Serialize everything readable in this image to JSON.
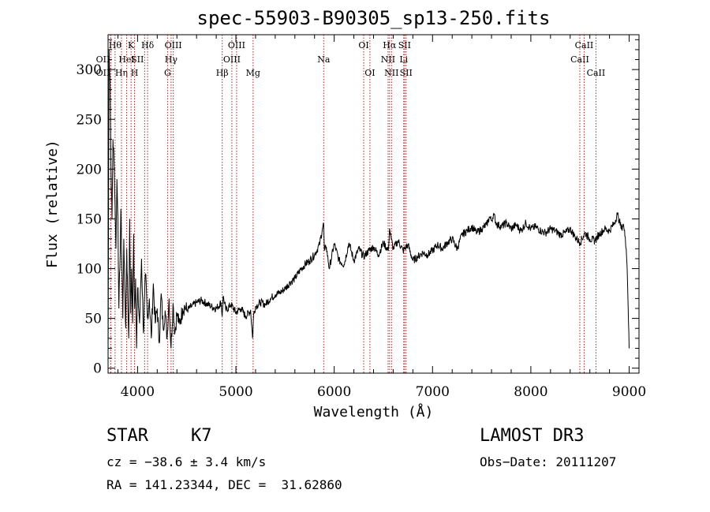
{
  "chart_data": {
    "type": "line",
    "title": "spec-55903-B90305_sp13-250.fits",
    "xlabel": "Wavelength (Å)",
    "ylabel": "Flux (relative)",
    "xlim": [
      3700,
      9100
    ],
    "ylim": [
      -5,
      335
    ],
    "x_ticks": [
      4000,
      5000,
      6000,
      7000,
      8000,
      9000
    ],
    "y_ticks": [
      0,
      50,
      100,
      150,
      200,
      250,
      300
    ],
    "series": [
      {
        "name": "spectrum",
        "x": [
          3700,
          3710,
          3720,
          3730,
          3740,
          3750,
          3760,
          3770,
          3780,
          3790,
          3800,
          3810,
          3820,
          3830,
          3840,
          3850,
          3860,
          3870,
          3880,
          3890,
          3900,
          3910,
          3920,
          3930,
          3940,
          3950,
          3960,
          3970,
          3980,
          3990,
          4000,
          4020,
          4040,
          4060,
          4080,
          4100,
          4120,
          4140,
          4160,
          4180,
          4200,
          4220,
          4240,
          4260,
          4280,
          4300,
          4320,
          4340,
          4360,
          4380,
          4400,
          4420,
          4440,
          4460,
          4480,
          4500,
          4550,
          4600,
          4650,
          4700,
          4750,
          4800,
          4850,
          4860,
          4870,
          4900,
          4950,
          5000,
          5050,
          5100,
          5150,
          5170,
          5180,
          5200,
          5250,
          5300,
          5350,
          5400,
          5450,
          5500,
          5550,
          5600,
          5650,
          5700,
          5750,
          5800,
          5850,
          5880,
          5893,
          5900,
          5920,
          5950,
          6000,
          6050,
          6100,
          6150,
          6200,
          6250,
          6300,
          6350,
          6400,
          6450,
          6500,
          6550,
          6563,
          6580,
          6600,
          6650,
          6700,
          6750,
          6800,
          6850,
          6900,
          6950,
          7000,
          7050,
          7100,
          7150,
          7200,
          7250,
          7300,
          7350,
          7400,
          7450,
          7500,
          7550,
          7580,
          7600,
          7620,
          7650,
          7700,
          7750,
          7800,
          7850,
          7900,
          7950,
          8000,
          8050,
          8100,
          8150,
          8200,
          8250,
          8300,
          8350,
          8400,
          8450,
          8500,
          8550,
          8600,
          8650,
          8700,
          8750,
          8800,
          8850,
          8880,
          8900,
          8920,
          8940,
          8950,
          8960,
          8970,
          8980,
          8990,
          9000
        ],
        "values": [
          5,
          320,
          290,
          200,
          150,
          230,
          210,
          170,
          120,
          190,
          150,
          60,
          100,
          160,
          110,
          50,
          130,
          80,
          40,
          120,
          70,
          30,
          150,
          55,
          100,
          45,
          135,
          60,
          90,
          20,
          80,
          45,
          110,
          35,
          95,
          50,
          70,
          30,
          85,
          45,
          60,
          25,
          75,
          40,
          58,
          30,
          70,
          20,
          65,
          35,
          55,
          45,
          50,
          60,
          62,
          58,
          62,
          66,
          68,
          65,
          62,
          60,
          66,
          52,
          72,
          58,
          64,
          56,
          60,
          52,
          58,
          30,
          54,
          62,
          66,
          64,
          70,
          74,
          76,
          80,
          86,
          90,
          98,
          104,
          108,
          114,
          124,
          140,
          145,
          118,
          122,
          100,
          125,
          108,
          104,
          126,
          108,
          120,
          112,
          118,
          122,
          114,
          126,
          118,
          140,
          130,
          120,
          128,
          118,
          124,
          108,
          112,
          116,
          114,
          118,
          124,
          120,
          126,
          130,
          120,
          134,
          138,
          142,
          136,
          140,
          144,
          152,
          148,
          155,
          145,
          142,
          146,
          140,
          144,
          138,
          146,
          140,
          142,
          138,
          136,
          140,
          138,
          134,
          136,
          140,
          132,
          126,
          136,
          130,
          128,
          135,
          140,
          138,
          146,
          155,
          148,
          140,
          145,
          138,
          132,
          120,
          100,
          60,
          20
        ]
      }
    ],
    "line_markers": [
      {
        "label": "OII",
        "x": 3727,
        "row": 1,
        "anchor": "end"
      },
      {
        "label": "OII",
        "x": 3727,
        "row": 2,
        "anchor": "end"
      },
      {
        "label": "Hθ",
        "x": 3771,
        "row": 0,
        "anchor": "middle"
      },
      {
        "label": "Hη",
        "x": 3836,
        "row": 2,
        "anchor": "middle"
      },
      {
        "label": "HeI",
        "x": 3889,
        "row": 1,
        "anchor": "middle"
      },
      {
        "label": "K",
        "x": 3934,
        "row": 0,
        "anchor": "middle"
      },
      {
        "label": "H",
        "x": 3969,
        "row": 2,
        "anchor": "middle"
      },
      {
        "label": "SII",
        "x": 4072,
        "row": 1,
        "anchor": "end"
      },
      {
        "label": "Hδ",
        "x": 4102,
        "row": 0,
        "anchor": "middle"
      },
      {
        "label": "G",
        "x": 4305,
        "row": 2,
        "anchor": "middle"
      },
      {
        "label": "Hγ",
        "x": 4341,
        "row": 1,
        "anchor": "middle"
      },
      {
        "label": "OIII",
        "x": 4363,
        "row": 0,
        "anchor": "middle"
      },
      {
        "label": "Hβ",
        "x": 4861,
        "row": 2,
        "anchor": "middle"
      },
      {
        "label": "OIII",
        "x": 4959,
        "row": 1,
        "anchor": "middle"
      },
      {
        "label": "OIII",
        "x": 5007,
        "row": 0,
        "anchor": "middle"
      },
      {
        "label": "Mg",
        "x": 5175,
        "row": 2,
        "anchor": "middle"
      },
      {
        "label": "Na",
        "x": 5893,
        "row": 1,
        "anchor": "middle"
      },
      {
        "label": "OI",
        "x": 6300,
        "row": 0,
        "anchor": "middle"
      },
      {
        "label": "OI",
        "x": 6363,
        "row": 2,
        "anchor": "middle"
      },
      {
        "label": "NII",
        "x": 6548,
        "row": 1,
        "anchor": "middle"
      },
      {
        "label": "Hα",
        "x": 6563,
        "row": 0,
        "anchor": "middle"
      },
      {
        "label": "NII",
        "x": 6583,
        "row": 2,
        "anchor": "middle"
      },
      {
        "label": "Li",
        "x": 6707,
        "row": 1,
        "anchor": "middle"
      },
      {
        "label": "SII",
        "x": 6716,
        "row": 0,
        "anchor": "middle"
      },
      {
        "label": "SII",
        "x": 6731,
        "row": 2,
        "anchor": "middle"
      },
      {
        "label": "CaII",
        "x": 8498,
        "row": 1,
        "anchor": "middle"
      },
      {
        "label": "CaII",
        "x": 8542,
        "row": 0,
        "anchor": "middle"
      },
      {
        "label": "CaII",
        "x": 8662,
        "row": 2,
        "anchor": "middle"
      }
    ]
  },
  "info": {
    "class": "STAR",
    "subclass": "K7",
    "survey": "LAMOST DR3",
    "cz": "cz = −38.6 ± 3.4 km/s",
    "obs_date": "Obs−Date: 20111207",
    "coords": "RA = 141.23344, DEC =  31.62860"
  },
  "colors": {
    "line": "#000000",
    "marker": "#b22222",
    "axis": "#000000"
  }
}
